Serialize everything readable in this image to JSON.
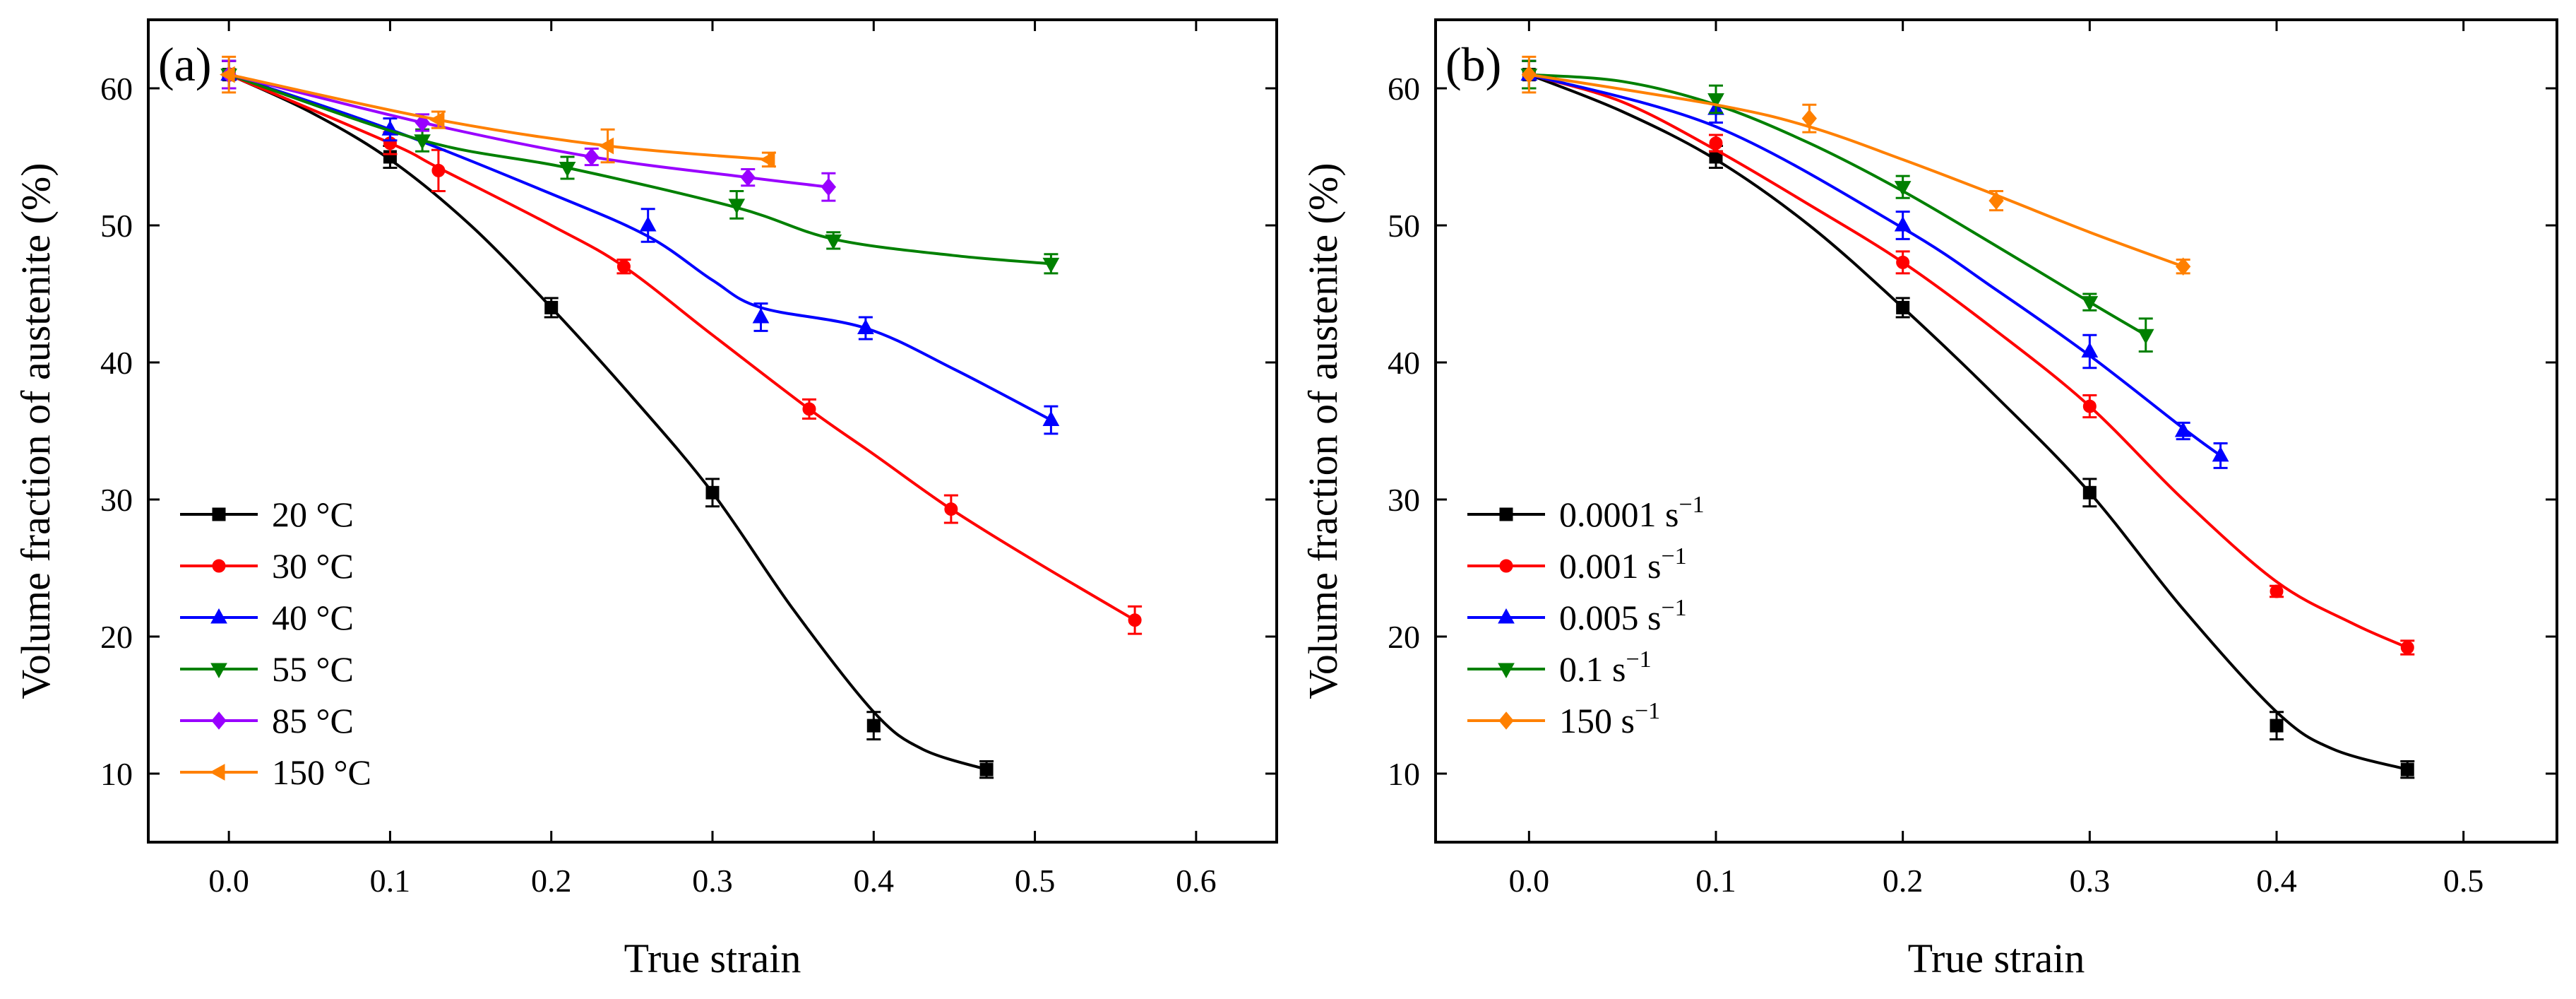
{
  "chart_data": [
    {
      "type": "line",
      "panel_label": "(a)",
      "xlabel": "True strain",
      "ylabel": "Volume fraction of austenite (%)",
      "xlim": [
        -0.05,
        0.65
      ],
      "ylim": [
        5,
        65
      ],
      "xticks": [
        0.0,
        0.1,
        0.2,
        0.3,
        0.4,
        0.5,
        0.6
      ],
      "xtick_labels": [
        "0.0",
        "0.1",
        "0.2",
        "0.3",
        "0.4",
        "0.5",
        "0.6"
      ],
      "yticks": [
        10,
        20,
        30,
        40,
        50,
        60
      ],
      "ytick_labels": [
        "10",
        "20",
        "30",
        "40",
        "50",
        "60"
      ],
      "grid": false,
      "legend_position": "bottom-left",
      "series": [
        {
          "name": "20 °C",
          "color": "#000000",
          "marker": "square",
          "x": [
            0,
            0.1,
            0.2,
            0.3,
            0.4,
            0.47
          ],
          "y": [
            61,
            55,
            44,
            30.5,
            13.5,
            10.3
          ],
          "err": [
            1.0,
            0.8,
            0.7,
            1.0,
            1.0,
            0.6
          ],
          "curve_x": [
            0,
            0.05,
            0.1,
            0.15,
            0.2,
            0.25,
            0.3,
            0.35,
            0.4,
            0.43,
            0.47
          ],
          "curve_y": [
            61,
            58.3,
            54.8,
            50,
            44,
            37.5,
            30.5,
            22,
            14.5,
            11.8,
            10.3
          ]
        },
        {
          "name": "30 °C",
          "color": "#ff0000",
          "marker": "circle",
          "x": [
            0,
            0.1,
            0.13,
            0.245,
            0.36,
            0.448,
            0.562
          ],
          "y": [
            61,
            56,
            54,
            47,
            36.6,
            29.3,
            21.2
          ],
          "err": [
            1.0,
            0.8,
            1.5,
            0.5,
            0.7,
            1.0,
            1.0
          ],
          "curve_x": [
            0,
            0.1,
            0.13,
            0.2,
            0.245,
            0.3,
            0.36,
            0.4,
            0.448,
            0.5,
            0.562
          ],
          "curve_y": [
            61,
            56,
            54.2,
            50,
            47,
            42,
            36.6,
            33.3,
            29.3,
            25.5,
            21.2
          ]
        },
        {
          "name": "40 °C",
          "color": "#0000ff",
          "marker": "triangle-up",
          "x": [
            0,
            0.1,
            0.26,
            0.33,
            0.395,
            0.51
          ],
          "y": [
            61,
            57,
            50,
            43.3,
            42.5,
            35.8
          ],
          "err": [
            1.0,
            0.8,
            1.2,
            1.0,
            0.8,
            1.0
          ],
          "curve_x": [
            0,
            0.1,
            0.2,
            0.26,
            0.3,
            0.33,
            0.395,
            0.45,
            0.51
          ],
          "curve_y": [
            61,
            57,
            52.3,
            49.2,
            46,
            44,
            42.5,
            39.5,
            35.8
          ]
        },
        {
          "name": "55 °C",
          "color": "#008000",
          "marker": "triangle-down",
          "x": [
            0,
            0.12,
            0.21,
            0.315,
            0.375,
            0.51
          ],
          "y": [
            61,
            56.2,
            54.2,
            51.5,
            48.9,
            47.2
          ],
          "err": [
            1.0,
            0.8,
            0.8,
            1.0,
            0.6,
            0.7
          ],
          "curve_x": [
            0,
            0.12,
            0.21,
            0.315,
            0.375,
            0.45,
            0.51
          ],
          "curve_y": [
            61,
            56.2,
            54.2,
            51.3,
            49.0,
            47.8,
            47.2
          ]
        },
        {
          "name": "85 °C",
          "color": "#9900ff",
          "marker": "diamond",
          "x": [
            0,
            0.12,
            0.225,
            0.322,
            0.372
          ],
          "y": [
            61,
            57.5,
            55,
            53.5,
            52.8
          ],
          "err": [
            1.0,
            0.6,
            0.6,
            0.6,
            1.0
          ],
          "curve_x": [
            0,
            0.12,
            0.225,
            0.322,
            0.372
          ],
          "curve_y": [
            61,
            57.5,
            55,
            53.5,
            52.8
          ]
        },
        {
          "name": "150 °C",
          "color": "#ff8000",
          "marker": "triangle-left",
          "x": [
            0,
            0.13,
            0.235,
            0.335
          ],
          "y": [
            61,
            57.7,
            55.8,
            54.8
          ],
          "err": [
            1.3,
            0.6,
            1.2,
            0.5
          ],
          "curve_x": [
            0,
            0.13,
            0.235,
            0.335
          ],
          "curve_y": [
            61,
            57.7,
            55.8,
            54.8
          ]
        }
      ]
    },
    {
      "type": "line",
      "panel_label": "(b)",
      "xlabel": "True strain",
      "ylabel": "Volume fraction of austenite (%)",
      "xlim": [
        -0.05,
        0.55
      ],
      "ylim": [
        5,
        65
      ],
      "xticks": [
        0.0,
        0.1,
        0.2,
        0.3,
        0.4,
        0.5
      ],
      "xtick_labels": [
        "0.0",
        "0.1",
        "0.2",
        "0.3",
        "0.4",
        "0.5"
      ],
      "yticks": [
        10,
        20,
        30,
        40,
        50,
        60
      ],
      "ytick_labels": [
        "10",
        "20",
        "30",
        "40",
        "50",
        "60"
      ],
      "grid": false,
      "legend_position": "bottom-left",
      "series": [
        {
          "name": "0.0001 s",
          "unit_superscript": "−1",
          "color": "#000000",
          "marker": "square",
          "x": [
            0,
            0.1,
            0.2,
            0.3,
            0.4,
            0.47
          ],
          "y": [
            61,
            55,
            44,
            30.5,
            13.5,
            10.3
          ],
          "err": [
            1.0,
            0.8,
            0.7,
            1.0,
            1.0,
            0.6
          ],
          "curve_x": [
            0,
            0.05,
            0.1,
            0.15,
            0.2,
            0.25,
            0.3,
            0.35,
            0.4,
            0.43,
            0.47
          ],
          "curve_y": [
            61,
            58.3,
            54.8,
            50,
            44,
            37.5,
            30.5,
            22,
            14.5,
            11.8,
            10.3
          ]
        },
        {
          "name": "0.001 s",
          "unit_superscript": "−1",
          "color": "#ff0000",
          "marker": "circle",
          "x": [
            0,
            0.1,
            0.2,
            0.3,
            0.4,
            0.47
          ],
          "y": [
            61,
            56,
            47.3,
            36.8,
            23.3,
            19.2
          ],
          "err": [
            1.0,
            0.6,
            0.8,
            0.8,
            0.4,
            0.5
          ],
          "curve_x": [
            0,
            0.05,
            0.1,
            0.15,
            0.2,
            0.25,
            0.3,
            0.35,
            0.4,
            0.44,
            0.47
          ],
          "curve_y": [
            61,
            59,
            55.5,
            51.5,
            47.3,
            42.3,
            36.8,
            30,
            24,
            21,
            19.2
          ]
        },
        {
          "name": "0.005 s",
          "unit_superscript": "−1",
          "color": "#0000ff",
          "marker": "triangle-up",
          "x": [
            0,
            0.1,
            0.2,
            0.3,
            0.35,
            0.37
          ],
          "y": [
            61,
            58.5,
            50,
            40.8,
            35,
            33.2
          ],
          "err": [
            1.0,
            1.0,
            1.0,
            1.2,
            0.6,
            0.9
          ],
          "curve_x": [
            0,
            0.1,
            0.2,
            0.25,
            0.3,
            0.35,
            0.37
          ],
          "curve_y": [
            61,
            57.2,
            49.8,
            45.3,
            40.5,
            35.2,
            33.2
          ]
        },
        {
          "name": "0.1 s",
          "unit_superscript": "−1",
          "color": "#008000",
          "marker": "triangle-down",
          "x": [
            0,
            0.1,
            0.2,
            0.3,
            0.33
          ],
          "y": [
            61,
            59.2,
            52.8,
            44.4,
            42
          ],
          "err": [
            1.0,
            1.0,
            0.8,
            0.6,
            1.2
          ],
          "curve_x": [
            0,
            0.05,
            0.1,
            0.15,
            0.2,
            0.25,
            0.3,
            0.33
          ],
          "curve_y": [
            61,
            60.5,
            58.8,
            56,
            52.5,
            48.5,
            44.4,
            42
          ]
        },
        {
          "name": "150 s",
          "unit_superscript": "−1",
          "color": "#ff8000",
          "marker": "diamond",
          "x": [
            0,
            0.15,
            0.25,
            0.35
          ],
          "y": [
            61,
            57.8,
            51.8,
            47
          ],
          "err": [
            1.3,
            1.0,
            0.7,
            0.5
          ],
          "curve_x": [
            0,
            0.1,
            0.15,
            0.2,
            0.25,
            0.3,
            0.35
          ],
          "curve_y": [
            61,
            58.8,
            57.2,
            54.8,
            52.2,
            49.5,
            47
          ]
        }
      ]
    }
  ]
}
